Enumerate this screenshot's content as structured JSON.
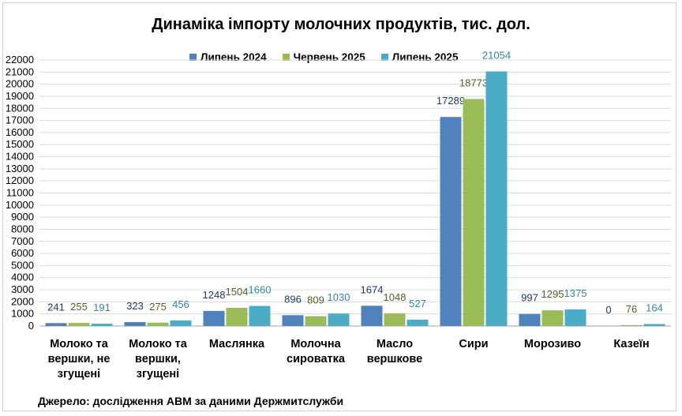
{
  "chart_data": {
    "type": "bar",
    "title": "Динаміка імпорту молочних продуктів, тис. дол.",
    "categories": [
      [
        "Молоко та",
        "вершки, не",
        "згущені"
      ],
      [
        "Молоко та",
        "вершки,",
        "згущені"
      ],
      [
        "Маслянка"
      ],
      [
        "Молочна",
        "сироватка"
      ],
      [
        "Масло",
        "вершкове"
      ],
      [
        "Сири"
      ],
      [
        "Морозиво"
      ],
      [
        "Казеїн"
      ]
    ],
    "series": [
      {
        "name": "Липень 2024",
        "color": "#4F81BD",
        "label_color": "#1F3864",
        "values": [
          241,
          323,
          1248,
          896,
          1674,
          17289,
          997,
          0
        ]
      },
      {
        "name": "Червень 2025",
        "color": "#9BBB59",
        "label_color": "#4F6228",
        "values": [
          255,
          275,
          1504,
          809,
          1048,
          18773,
          1295,
          76
        ]
      },
      {
        "name": "Липень 2025",
        "color": "#4BACC6",
        "label_color": "#31859C",
        "values": [
          191,
          456,
          1660,
          1030,
          527,
          21054,
          1375,
          164
        ]
      }
    ],
    "ylim": [
      0,
      22000
    ],
    "ytick_step": 1000,
    "grid": true,
    "legend_position": "top"
  },
  "source_note": "Джерело: дослідження АВМ за даними Держмитслужби"
}
